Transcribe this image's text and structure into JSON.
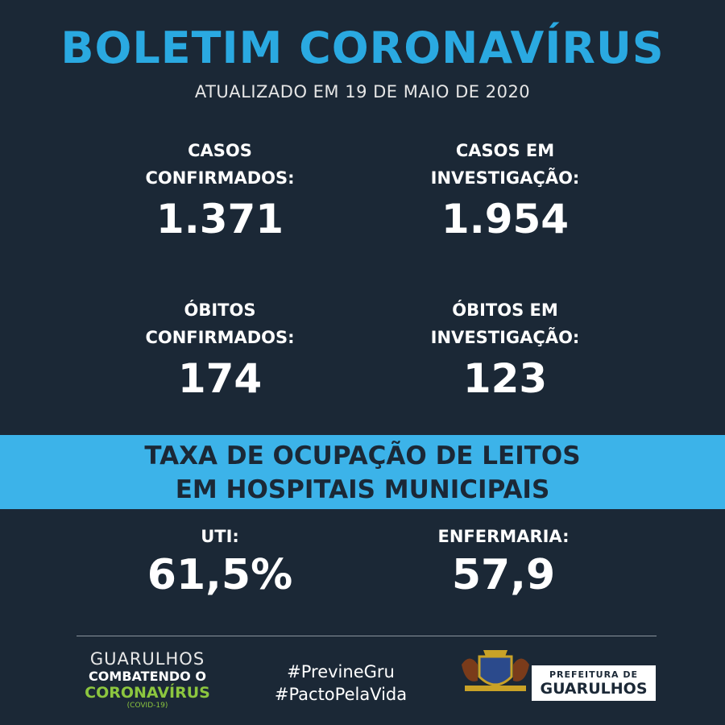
{
  "header": {
    "title": "BOLETIM CORONAVÍRUS",
    "subtitle": "ATUALIZADO EM 19 DE MAIO DE 2020"
  },
  "stats": [
    {
      "label_lines": [
        "CASOS",
        "CONFIRMADOS:"
      ],
      "value": "1.371"
    },
    {
      "label_lines": [
        "CASOS EM",
        "INVESTIGAÇÃO:"
      ],
      "value": "1.954"
    },
    {
      "label_lines": [
        "ÓBITOS",
        "CONFIRMADOS:"
      ],
      "value": "174"
    },
    {
      "label_lines": [
        "ÓBITOS EM",
        "INVESTIGAÇÃO:"
      ],
      "value": "123"
    }
  ],
  "banner": {
    "lines": [
      "TAXA DE OCUPAÇÃO DE LEITOS",
      "EM HOSPITAIS MUNICIPAIS"
    ]
  },
  "occupancy": [
    {
      "label": "UTI:",
      "value": "61,5%"
    },
    {
      "label": "ENFERMARIA:",
      "value": "57,9"
    }
  ],
  "footer": {
    "campaign": {
      "line1": "GUARULHOS",
      "line2": "COMBATENDO O",
      "line3": "CORONAVÍRUS",
      "line4": "(COVID-19)"
    },
    "hashtags": [
      "#PrevineGru",
      "#PactoPelaVida"
    ],
    "logo": {
      "line1": "PREFEITURA DE",
      "line2": "GUARULHOS"
    }
  }
}
